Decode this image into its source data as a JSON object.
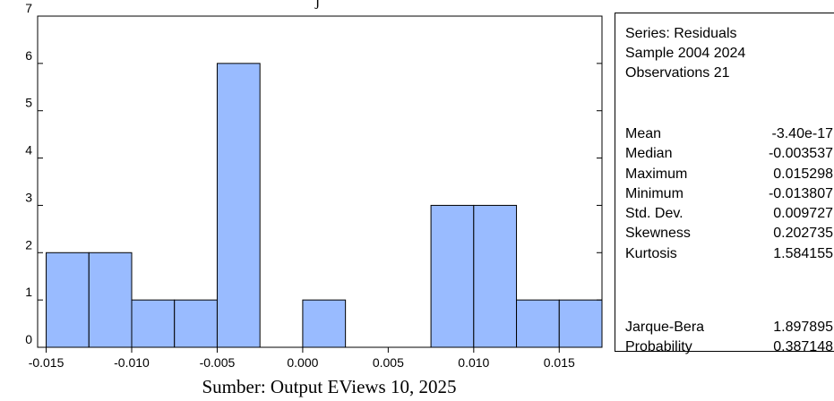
{
  "chart_data": {
    "type": "bar",
    "bins": [
      {
        "from": -0.015,
        "to": -0.0125,
        "count": 2
      },
      {
        "from": -0.0125,
        "to": -0.01,
        "count": 2
      },
      {
        "from": -0.01,
        "to": -0.0075,
        "count": 1
      },
      {
        "from": -0.0075,
        "to": -0.005,
        "count": 1
      },
      {
        "from": -0.005,
        "to": -0.0025,
        "count": 6
      },
      {
        "from": -0.0025,
        "to": 0.0,
        "count": 0
      },
      {
        "from": 0.0,
        "to": 0.0025,
        "count": 1
      },
      {
        "from": 0.0025,
        "to": 0.005,
        "count": 0
      },
      {
        "from": 0.005,
        "to": 0.0075,
        "count": 0
      },
      {
        "from": 0.0075,
        "to": 0.01,
        "count": 3
      },
      {
        "from": 0.01,
        "to": 0.0125,
        "count": 3
      },
      {
        "from": 0.0125,
        "to": 0.015,
        "count": 1
      },
      {
        "from": 0.015,
        "to": 0.0175,
        "count": 1
      }
    ],
    "xlim": [
      -0.0155,
      0.0175
    ],
    "ylim": [
      0,
      7
    ],
    "x_ticks": [
      "-0.015",
      "-0.010",
      "-0.005",
      "0.000",
      "0.005",
      "0.010",
      "0.015"
    ],
    "x_tick_values": [
      -0.015,
      -0.01,
      -0.005,
      0.0,
      0.005,
      0.01,
      0.015
    ],
    "y_ticks": [
      "0",
      "1",
      "2",
      "3",
      "4",
      "5",
      "6",
      "7"
    ],
    "y_tick_values": [
      0,
      1,
      2,
      3,
      4,
      5,
      6,
      7
    ],
    "title": "",
    "xlabel": "",
    "ylabel": "",
    "grid": false,
    "bar_color": "#99bbff",
    "bar_edge_color": "#000000"
  },
  "title_fragment": "j",
  "stats": {
    "header": [
      "Series: Residuals",
      "Sample 2004 2024",
      "Observations 21"
    ],
    "rows": [
      {
        "label": "Mean",
        "value": "-3.40e-17"
      },
      {
        "label": "Median",
        "value": "-0.003537"
      },
      {
        "label": "Maximum",
        "value": "0.015298"
      },
      {
        "label": "Minimum",
        "value": "-0.013807"
      },
      {
        "label": "Std. Dev.",
        "value": "0.009727"
      },
      {
        "label": "Skewness",
        "value": "0.202735"
      },
      {
        "label": "Kurtosis",
        "value": "1.584155"
      }
    ],
    "test_rows": [
      {
        "label": "Jarque-Bera",
        "value": "1.897895"
      },
      {
        "label": "Probability",
        "value": "0.387148"
      }
    ]
  },
  "caption": "Sumber: Output EViews 10, 2025"
}
